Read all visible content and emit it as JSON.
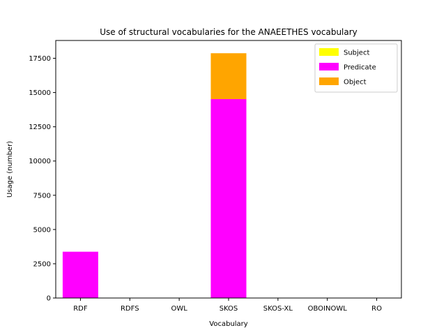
{
  "chart_data": {
    "type": "bar",
    "stacked": true,
    "title": "Use of structural vocabularies for the ANAEETHES vocabulary",
    "xlabel": "Vocabulary",
    "ylabel": "Usage (number)",
    "categories": [
      "RDF",
      "RDFS",
      "OWL",
      "SKOS",
      "SKOS-XL",
      "OBOINOWL",
      "RO"
    ],
    "ylim": [
      0,
      18800
    ],
    "yticks": [
      0,
      2500,
      5000,
      7500,
      10000,
      12500,
      15000,
      17500
    ],
    "grid": false,
    "legend_position": "top-right",
    "series": [
      {
        "name": "Subject",
        "color": "#ffff00",
        "values": [
          0,
          0,
          0,
          0,
          0,
          0,
          0
        ]
      },
      {
        "name": "Predicate",
        "color": "#ff00ff",
        "values": [
          3380,
          0,
          0,
          14520,
          0,
          0,
          0
        ]
      },
      {
        "name": "Object",
        "color": "#ffa500",
        "values": [
          0,
          0,
          0,
          3350,
          0,
          0,
          0
        ]
      }
    ]
  }
}
